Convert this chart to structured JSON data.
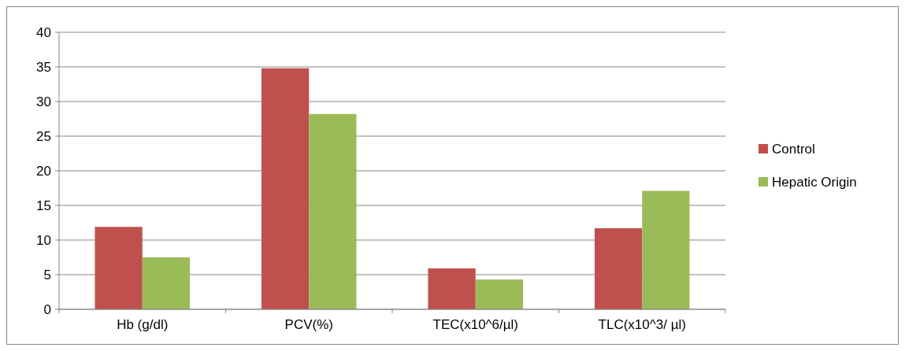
{
  "chart_data": {
    "type": "bar",
    "categories": [
      "Hb (g/dl)",
      "PCV(%)",
      "TEC(x10^6/µl)",
      "TLC(x10^3/ µl)"
    ],
    "series": [
      {
        "name": "Control",
        "color": "#c0504d",
        "values": [
          11.9,
          34.8,
          5.9,
          11.7
        ]
      },
      {
        "name": "Hepatic Origin",
        "color": "#9bbb59",
        "values": [
          7.5,
          28.2,
          4.3,
          17.1
        ]
      }
    ],
    "ylim": [
      0,
      40
    ],
    "yticks": [
      0,
      5,
      10,
      15,
      20,
      25,
      30,
      35,
      40
    ],
    "grid": "y",
    "legend": "right"
  }
}
